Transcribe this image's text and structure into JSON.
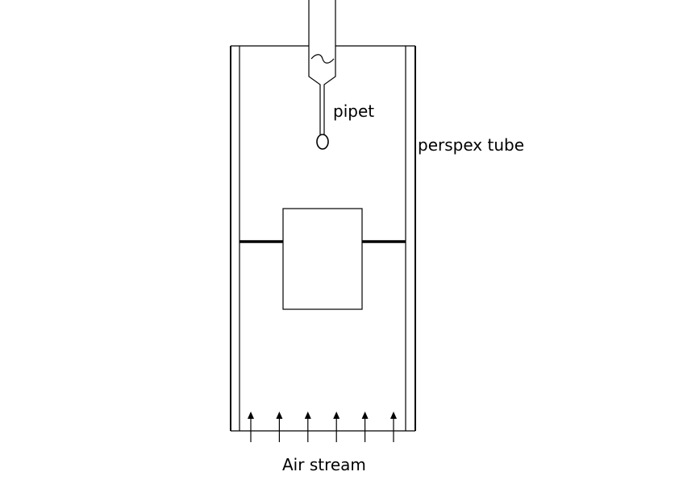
{
  "labels": {
    "pipet": "pipet",
    "tube": "perspex tube",
    "air": "Air stream"
  },
  "arrow_count": 6,
  "colors": {
    "stroke": "#000000",
    "background": "#ffffff"
  }
}
